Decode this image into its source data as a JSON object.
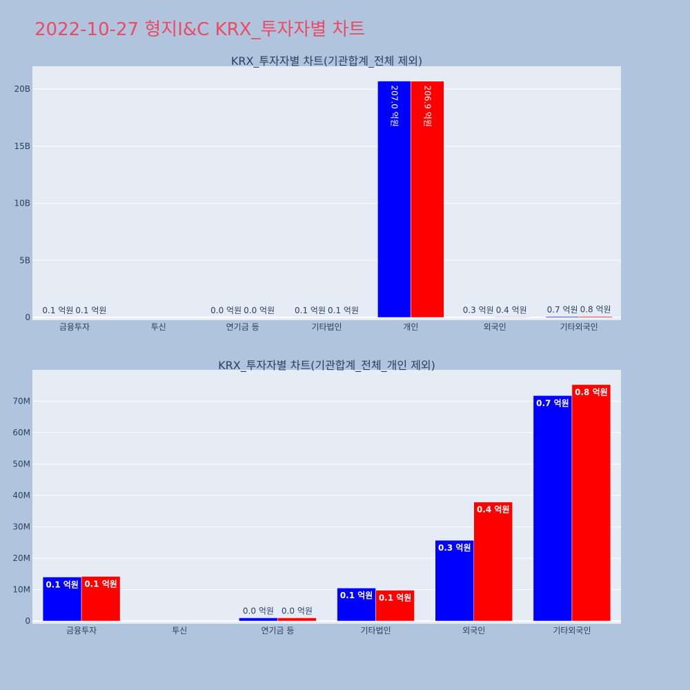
{
  "page_title": "2022-10-27 형지I&C KRX_투자자별 차트",
  "colors": {
    "background": "#b0c4de",
    "plot_bg": "#e5ecf6",
    "grid": "#ffffff",
    "title": "#ec4a63",
    "text": "#2a3f5f",
    "series_a": "#0000ff",
    "series_b": "#ff0000"
  },
  "chart_data": [
    {
      "type": "bar",
      "title": "KRX_투자자별 차트(기관합계_전체 제외)",
      "categories": [
        "금융투자",
        "투신",
        "연기금 등",
        "기타법인",
        "개인",
        "외국인",
        "기타외국인"
      ],
      "series": [
        {
          "color": "#0000ff",
          "values": [
            13000000,
            0,
            700000,
            9000000,
            20700000000,
            25000000,
            72000000
          ],
          "labels": [
            "0.1 억원",
            "",
            "0.0 억원",
            "0.1 억원",
            "207.0 억원",
            "0.3 억원",
            "0.7 억원"
          ]
        },
        {
          "color": "#ff0000",
          "values": [
            13000000,
            0,
            700000,
            9000000,
            20690000000,
            38000000,
            76000000
          ],
          "labels": [
            "0.1 억원",
            "",
            "0.0 억원",
            "0.1 억원",
            "206.9 억원",
            "0.4 억원",
            "0.8 억원"
          ]
        }
      ],
      "ylim": [
        0,
        22000000000
      ],
      "yticks": [
        0,
        5000000000,
        10000000000,
        15000000000,
        20000000000
      ],
      "ytick_labels": [
        "0",
        "5B",
        "10B",
        "15B",
        "20B"
      ],
      "xlabel": "",
      "ylabel": "",
      "grid": true,
      "legend": "none"
    },
    {
      "type": "bar",
      "title": "KRX_투자자별 차트(기관합계_전체_개인 제외)",
      "categories": [
        "금융투자",
        "투신",
        "연기금 등",
        "기타법인",
        "외국인",
        "기타외국인"
      ],
      "series": [
        {
          "color": "#0000ff",
          "values": [
            14000000,
            0,
            1000000,
            10500000,
            25700000,
            71800000
          ],
          "labels": [
            "0.1 억원",
            "",
            "0.0 억원",
            "0.1 억원",
            "0.3 억원",
            "0.7 억원"
          ]
        },
        {
          "color": "#ff0000",
          "values": [
            14200000,
            0,
            1000000,
            9800000,
            37900000,
            75300000
          ],
          "labels": [
            "0.1 억원",
            "",
            "0.0 억원",
            "0.1 억원",
            "0.4 억원",
            "0.8 억원"
          ]
        }
      ],
      "ylim": [
        0,
        80000000
      ],
      "yticks": [
        0,
        10000000,
        20000000,
        30000000,
        40000000,
        50000000,
        60000000,
        70000000
      ],
      "ytick_labels": [
        "0",
        "10M",
        "20M",
        "30M",
        "40M",
        "50M",
        "60M",
        "70M"
      ],
      "xlabel": "",
      "ylabel": "",
      "grid": true,
      "legend": "none"
    }
  ]
}
